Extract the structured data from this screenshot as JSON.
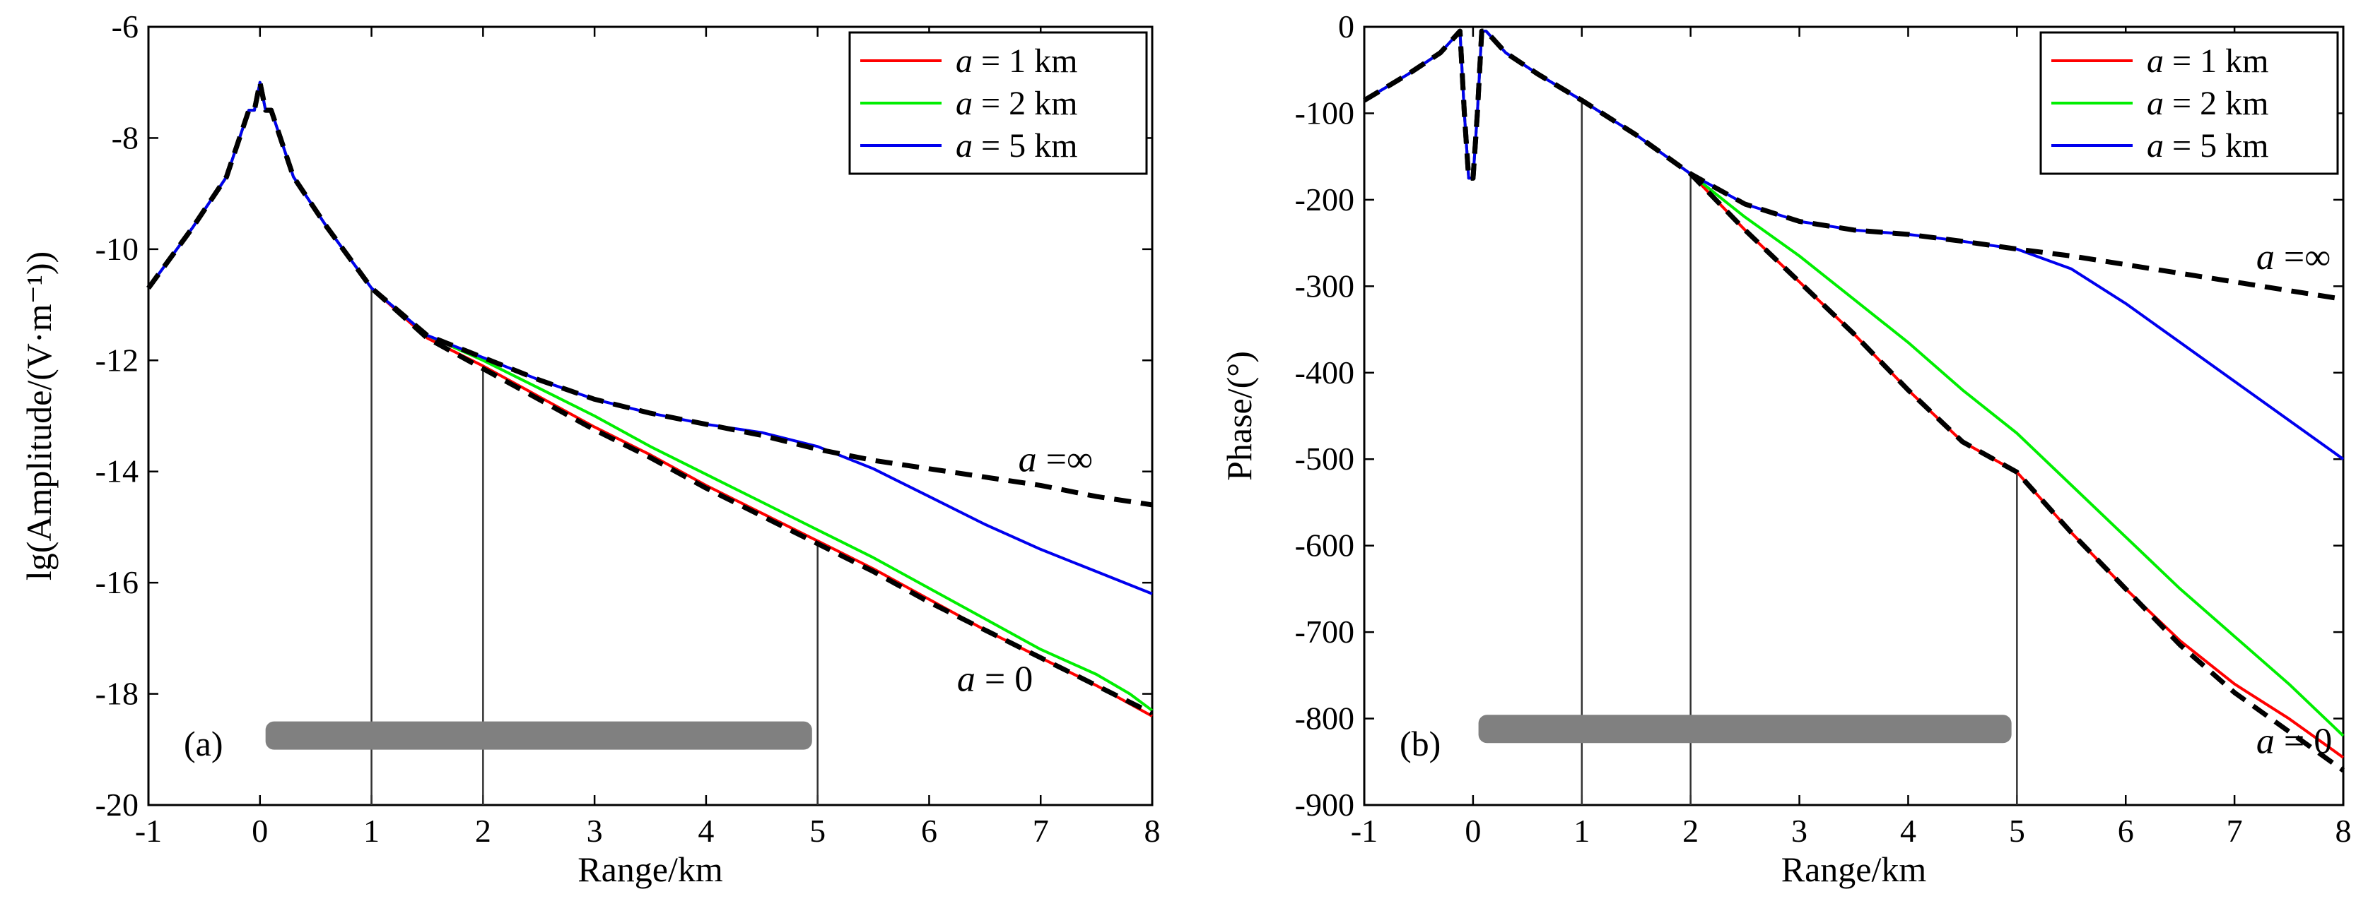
{
  "chart_data": [
    {
      "type": "line",
      "panel_label": "(a)",
      "xlabel": "Range/km",
      "ylabel": "lg(Amplitude/(V·m⁻¹))",
      "xlim": [
        -1,
        8
      ],
      "ylim": [
        -20,
        -6
      ],
      "xticks": [
        -1,
        0,
        1,
        2,
        3,
        4,
        5,
        6,
        7,
        8
      ],
      "xtick_labels": [
        "-1",
        "0",
        "1",
        "2",
        "3",
        "4",
        "5",
        "6",
        "7",
        "8"
      ],
      "yticks": [
        -20,
        -18,
        -16,
        -14,
        -12,
        -10,
        -8,
        -6
      ],
      "ytick_labels": [
        "-20",
        "-18",
        "-16",
        "-14",
        "-12",
        "-10",
        "-8",
        "-6"
      ],
      "legend_position": "top-right",
      "vlines": [
        1,
        2,
        5
      ],
      "bar": {
        "x": [
          0.05,
          4.95
        ],
        "y": -18.75
      },
      "series": [
        {
          "name": "a = 1 km",
          "legend_italic": "a",
          "legend_rest": " = 1 km",
          "color": "#ff0000",
          "x": [
            -1,
            -0.6,
            -0.3,
            -0.1,
            -0.05,
            0,
            0.05,
            0.1,
            0.3,
            0.6,
            1,
            1.5,
            2,
            2.5,
            3,
            3.5,
            4,
            4.5,
            5,
            5.5,
            6,
            6.5,
            7,
            7.5,
            8
          ],
          "y": [
            -10.7,
            -9.6,
            -8.7,
            -7.5,
            -7.5,
            -7.0,
            -7.5,
            -7.5,
            -8.7,
            -9.6,
            -10.7,
            -11.6,
            -12.1,
            -12.65,
            -13.2,
            -13.7,
            -14.25,
            -14.75,
            -15.25,
            -15.75,
            -16.3,
            -16.85,
            -17.35,
            -17.85,
            -18.4
          ]
        },
        {
          "name": "a = 2 km",
          "legend_italic": "a",
          "legend_rest": " = 2 km",
          "color": "#00ee00",
          "x": [
            -1,
            -0.6,
            -0.3,
            -0.1,
            -0.05,
            0,
            0.05,
            0.1,
            0.3,
            0.6,
            1,
            1.5,
            2,
            2.5,
            3,
            3.5,
            4,
            4.5,
            5,
            5.5,
            6,
            6.5,
            7,
            7.5,
            7.8,
            8
          ],
          "y": [
            -10.7,
            -9.6,
            -8.7,
            -7.5,
            -7.5,
            -7.0,
            -7.5,
            -7.5,
            -8.7,
            -9.6,
            -10.7,
            -11.55,
            -12.0,
            -12.5,
            -13.0,
            -13.55,
            -14.05,
            -14.55,
            -15.05,
            -15.55,
            -16.1,
            -16.65,
            -17.2,
            -17.65,
            -18.0,
            -18.3
          ]
        },
        {
          "name": "a = 5 km",
          "legend_italic": "a",
          "legend_rest": " = 5 km",
          "color": "#0000ee",
          "x": [
            -1,
            -0.6,
            -0.3,
            -0.1,
            -0.05,
            0,
            0.05,
            0.1,
            0.3,
            0.6,
            1,
            1.5,
            2,
            2.5,
            3,
            3.5,
            4,
            4.5,
            5,
            5.5,
            6,
            6.5,
            7,
            7.5,
            8
          ],
          "y": [
            -10.7,
            -9.6,
            -8.7,
            -7.5,
            -7.5,
            -7.0,
            -7.5,
            -7.5,
            -8.7,
            -9.6,
            -10.7,
            -11.55,
            -11.95,
            -12.35,
            -12.7,
            -12.95,
            -13.15,
            -13.3,
            -13.55,
            -13.95,
            -14.45,
            -14.95,
            -15.4,
            -15.8,
            -16.2
          ]
        },
        {
          "name": "a = ∞",
          "color": "#000000",
          "dashed": true,
          "x": [
            -1,
            -0.6,
            -0.3,
            -0.1,
            -0.05,
            0,
            0.05,
            0.1,
            0.3,
            0.6,
            1,
            1.5,
            2,
            2.5,
            3,
            3.5,
            4,
            4.5,
            5,
            5.5,
            6,
            6.5,
            7,
            7.5,
            8
          ],
          "y": [
            -10.7,
            -9.6,
            -8.7,
            -7.5,
            -7.5,
            -7.0,
            -7.5,
            -7.5,
            -8.7,
            -9.6,
            -10.7,
            -11.55,
            -11.95,
            -12.35,
            -12.7,
            -12.95,
            -13.15,
            -13.35,
            -13.6,
            -13.8,
            -13.95,
            -14.1,
            -14.25,
            -14.45,
            -14.6
          ]
        },
        {
          "name": "a = 0",
          "color": "#000000",
          "dashed": true,
          "x": [
            -1,
            -0.6,
            -0.3,
            -0.1,
            -0.05,
            0,
            0.05,
            0.1,
            0.3,
            0.6,
            1,
            1.5,
            2,
            2.5,
            3,
            3.5,
            4,
            4.5,
            5,
            5.5,
            6,
            6.5,
            7,
            7.5,
            8
          ],
          "y": [
            -10.7,
            -9.6,
            -8.7,
            -7.5,
            -7.5,
            -7.0,
            -7.5,
            -7.5,
            -8.7,
            -9.6,
            -10.7,
            -11.6,
            -12.15,
            -12.7,
            -13.25,
            -13.75,
            -14.3,
            -14.8,
            -15.3,
            -15.8,
            -16.35,
            -16.85,
            -17.35,
            -17.85,
            -18.35
          ]
        }
      ],
      "annotations": [
        {
          "italic": "a",
          "rest": " =∞",
          "x": 6.8,
          "y": -14.0
        },
        {
          "italic": "a",
          "rest": " = 0",
          "x": 6.25,
          "y": -17.95
        }
      ]
    },
    {
      "type": "line",
      "panel_label": "(b)",
      "xlabel": "Range/km",
      "ylabel": "Phase/(°)",
      "xlim": [
        -1,
        8
      ],
      "ylim": [
        -900,
        0
      ],
      "xticks": [
        -1,
        0,
        1,
        2,
        3,
        4,
        5,
        6,
        7,
        8
      ],
      "xtick_labels": [
        "-1",
        "0",
        "1",
        "2",
        "3",
        "4",
        "5",
        "6",
        "7",
        "8"
      ],
      "yticks": [
        -900,
        -800,
        -700,
        -600,
        -500,
        -400,
        -300,
        -200,
        -100,
        0
      ],
      "ytick_labels": [
        "-900",
        "-800",
        "-700",
        "-600",
        "-500",
        "-400",
        "-300",
        "-200",
        "-100",
        "0"
      ],
      "legend_position": "top-right",
      "vlines": [
        1,
        2,
        5
      ],
      "bar": {
        "x": [
          0.05,
          4.95
        ],
        "y": -812
      },
      "series": [
        {
          "name": "a = 1 km",
          "legend_italic": "a",
          "legend_rest": " = 1 km",
          "color": "#ff0000",
          "x": [
            -1,
            -0.6,
            -0.3,
            -0.12,
            -0.08,
            -0.04,
            0,
            0.04,
            0.08,
            0.12,
            0.3,
            0.6,
            1,
            1.5,
            2,
            2.5,
            3,
            3.5,
            4,
            4.5,
            5,
            5.5,
            6,
            6.5,
            7,
            7.5,
            8
          ],
          "y": [
            -85,
            -55,
            -30,
            -5,
            -100,
            -175,
            -175,
            -100,
            -5,
            -5,
            -30,
            -55,
            -85,
            -125,
            -170,
            -235,
            -295,
            -355,
            -420,
            -480,
            -515,
            -585,
            -650,
            -710,
            -760,
            -800,
            -845
          ]
        },
        {
          "name": "a = 2 km",
          "legend_italic": "a",
          "legend_rest": " = 2 km",
          "color": "#00ee00",
          "x": [
            -1,
            -0.6,
            -0.3,
            -0.12,
            -0.08,
            -0.04,
            0,
            0.04,
            0.08,
            0.12,
            0.3,
            0.6,
            1,
            1.5,
            2,
            2.5,
            3,
            3.5,
            4,
            4.5,
            5,
            5.5,
            6,
            6.5,
            7,
            7.5,
            8
          ],
          "y": [
            -85,
            -55,
            -30,
            -5,
            -100,
            -175,
            -175,
            -100,
            -5,
            -5,
            -30,
            -55,
            -85,
            -125,
            -170,
            -220,
            -265,
            -315,
            -365,
            -420,
            -470,
            -530,
            -590,
            -650,
            -705,
            -760,
            -820
          ]
        },
        {
          "name": "a = 5 km",
          "legend_italic": "a",
          "legend_rest": " = 5 km",
          "color": "#0000ee",
          "x": [
            -1,
            -0.6,
            -0.3,
            -0.12,
            -0.08,
            -0.04,
            0,
            0.04,
            0.08,
            0.12,
            0.3,
            0.6,
            1,
            1.5,
            2,
            2.5,
            3,
            3.5,
            4,
            4.5,
            5,
            5.5,
            6,
            6.5,
            7,
            7.5,
            8
          ],
          "y": [
            -85,
            -55,
            -30,
            -5,
            -100,
            -175,
            -175,
            -100,
            -5,
            -5,
            -30,
            -55,
            -85,
            -125,
            -170,
            -205,
            -225,
            -235,
            -240,
            -248,
            -257,
            -280,
            -320,
            -365,
            -410,
            -455,
            -500
          ]
        },
        {
          "name": "a = ∞",
          "color": "#000000",
          "dashed": true,
          "x": [
            -1,
            -0.6,
            -0.3,
            -0.12,
            -0.08,
            -0.04,
            0,
            0.04,
            0.08,
            0.12,
            0.3,
            0.6,
            1,
            1.5,
            2,
            2.5,
            3,
            3.5,
            4,
            4.5,
            5,
            5.5,
            6,
            6.5,
            7,
            7.5,
            8
          ],
          "y": [
            -85,
            -55,
            -30,
            -5,
            -100,
            -175,
            -175,
            -100,
            -5,
            -5,
            -30,
            -55,
            -85,
            -125,
            -170,
            -205,
            -225,
            -235,
            -240,
            -248,
            -257,
            -265,
            -275,
            -285,
            -295,
            -305,
            -315
          ]
        },
        {
          "name": "a = 0",
          "color": "#000000",
          "dashed": true,
          "x": [
            -1,
            -0.6,
            -0.3,
            -0.12,
            -0.08,
            -0.04,
            0,
            0.04,
            0.08,
            0.12,
            0.3,
            0.6,
            1,
            1.5,
            2,
            2.5,
            3,
            3.5,
            4,
            4.5,
            5,
            5.5,
            6,
            6.5,
            7,
            7.5,
            8
          ],
          "y": [
            -85,
            -55,
            -30,
            -5,
            -100,
            -175,
            -175,
            -100,
            -5,
            -5,
            -30,
            -55,
            -85,
            -125,
            -170,
            -235,
            -295,
            -355,
            -420,
            -480,
            -515,
            -585,
            -650,
            -715,
            -770,
            -815,
            -860
          ]
        }
      ],
      "annotations": [
        {
          "italic": "a",
          "rest": " =∞",
          "x": 7.2,
          "y": -280
        },
        {
          "italic": "a",
          "rest": " = 0",
          "x": 7.2,
          "y": -840
        }
      ]
    }
  ]
}
